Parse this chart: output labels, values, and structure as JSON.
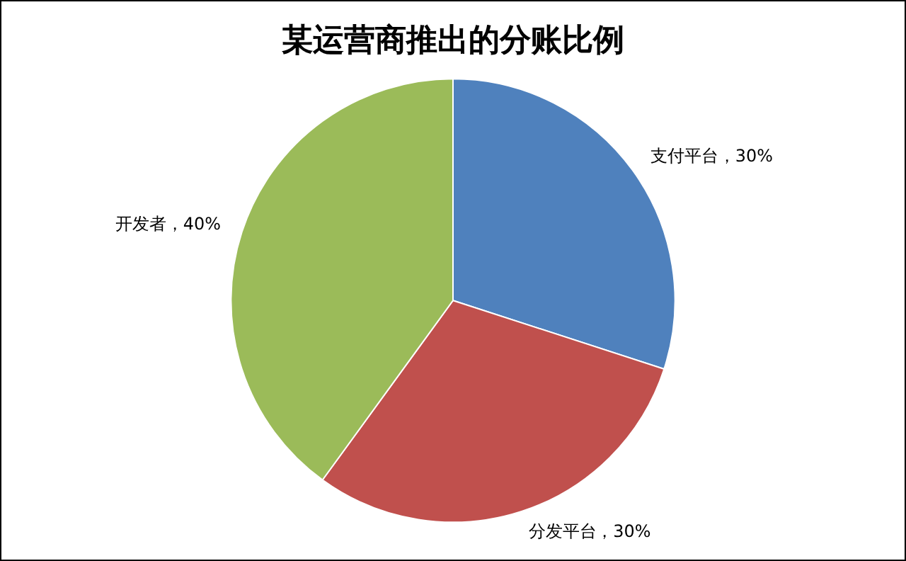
{
  "chart_data": {
    "type": "pie",
    "title": "某运营商推出的分账比例",
    "categories": [
      "支付平台",
      "分发平台",
      "开发者"
    ],
    "values": [
      30,
      30,
      40
    ],
    "colors": [
      "#4f81bd",
      "#c0504d",
      "#9bbb59"
    ],
    "value_labels": [
      "，30%",
      "，30%",
      "，40%"
    ],
    "legend": false
  }
}
